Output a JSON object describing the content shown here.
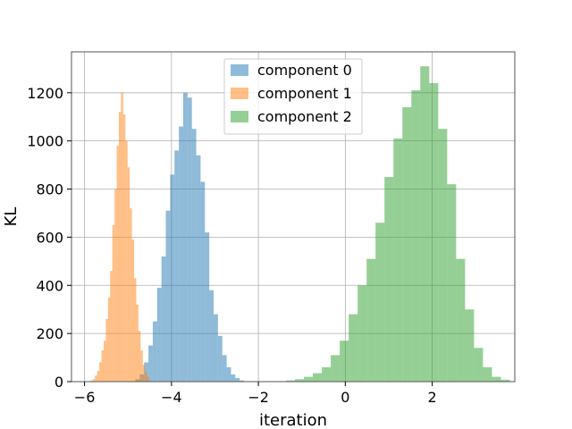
{
  "chart_data": {
    "type": "bar",
    "title": "",
    "xlabel": "iteration",
    "ylabel": "KL",
    "xlim": [
      -6.3,
      3.9
    ],
    "ylim": [
      0,
      1370
    ],
    "x_ticks": [
      -6,
      -4,
      -2,
      0,
      2
    ],
    "x_tick_labels": [
      "−6",
      "−4",
      "−2",
      "0",
      "2"
    ],
    "y_ticks": [
      0,
      200,
      400,
      600,
      800,
      1000,
      1200
    ],
    "y_tick_labels": [
      "0",
      "200",
      "400",
      "600",
      "800",
      "1000",
      "1200"
    ],
    "grid": true,
    "legend_position": "top-center",
    "series": [
      {
        "name": "component 0",
        "color": "#1f77b4",
        "alpha": 0.5,
        "bin_start": -4.83,
        "bin_width": 0.1,
        "values": [
          10,
          30,
          80,
          150,
          250,
          390,
          520,
          710,
          860,
          960,
          1060,
          1200,
          1180,
          1050,
          940,
          830,
          620,
          380,
          280,
          190,
          110,
          60,
          30,
          15,
          5
        ]
      },
      {
        "name": "component 1",
        "color": "#ff7f0e",
        "alpha": 0.5,
        "bin_start": -5.86,
        "bin_width": 0.05,
        "values": [
          5,
          10,
          25,
          45,
          80,
          130,
          170,
          260,
          350,
          460,
          650,
          800,
          980,
          1120,
          1200,
          1110,
          1000,
          890,
          720,
          590,
          430,
          320,
          210,
          130,
          70,
          40,
          20
        ]
      },
      {
        "name": "component 2",
        "color": "#2ca02c",
        "alpha": 0.5,
        "bin_start": -1.57,
        "bin_width": 0.206,
        "values": [
          2,
          5,
          10,
          20,
          35,
          60,
          110,
          170,
          280,
          400,
          510,
          660,
          850,
          1010,
          1140,
          1210,
          1310,
          1240,
          1050,
          820,
          510,
          300,
          140,
          60,
          20,
          8
        ]
      }
    ]
  }
}
